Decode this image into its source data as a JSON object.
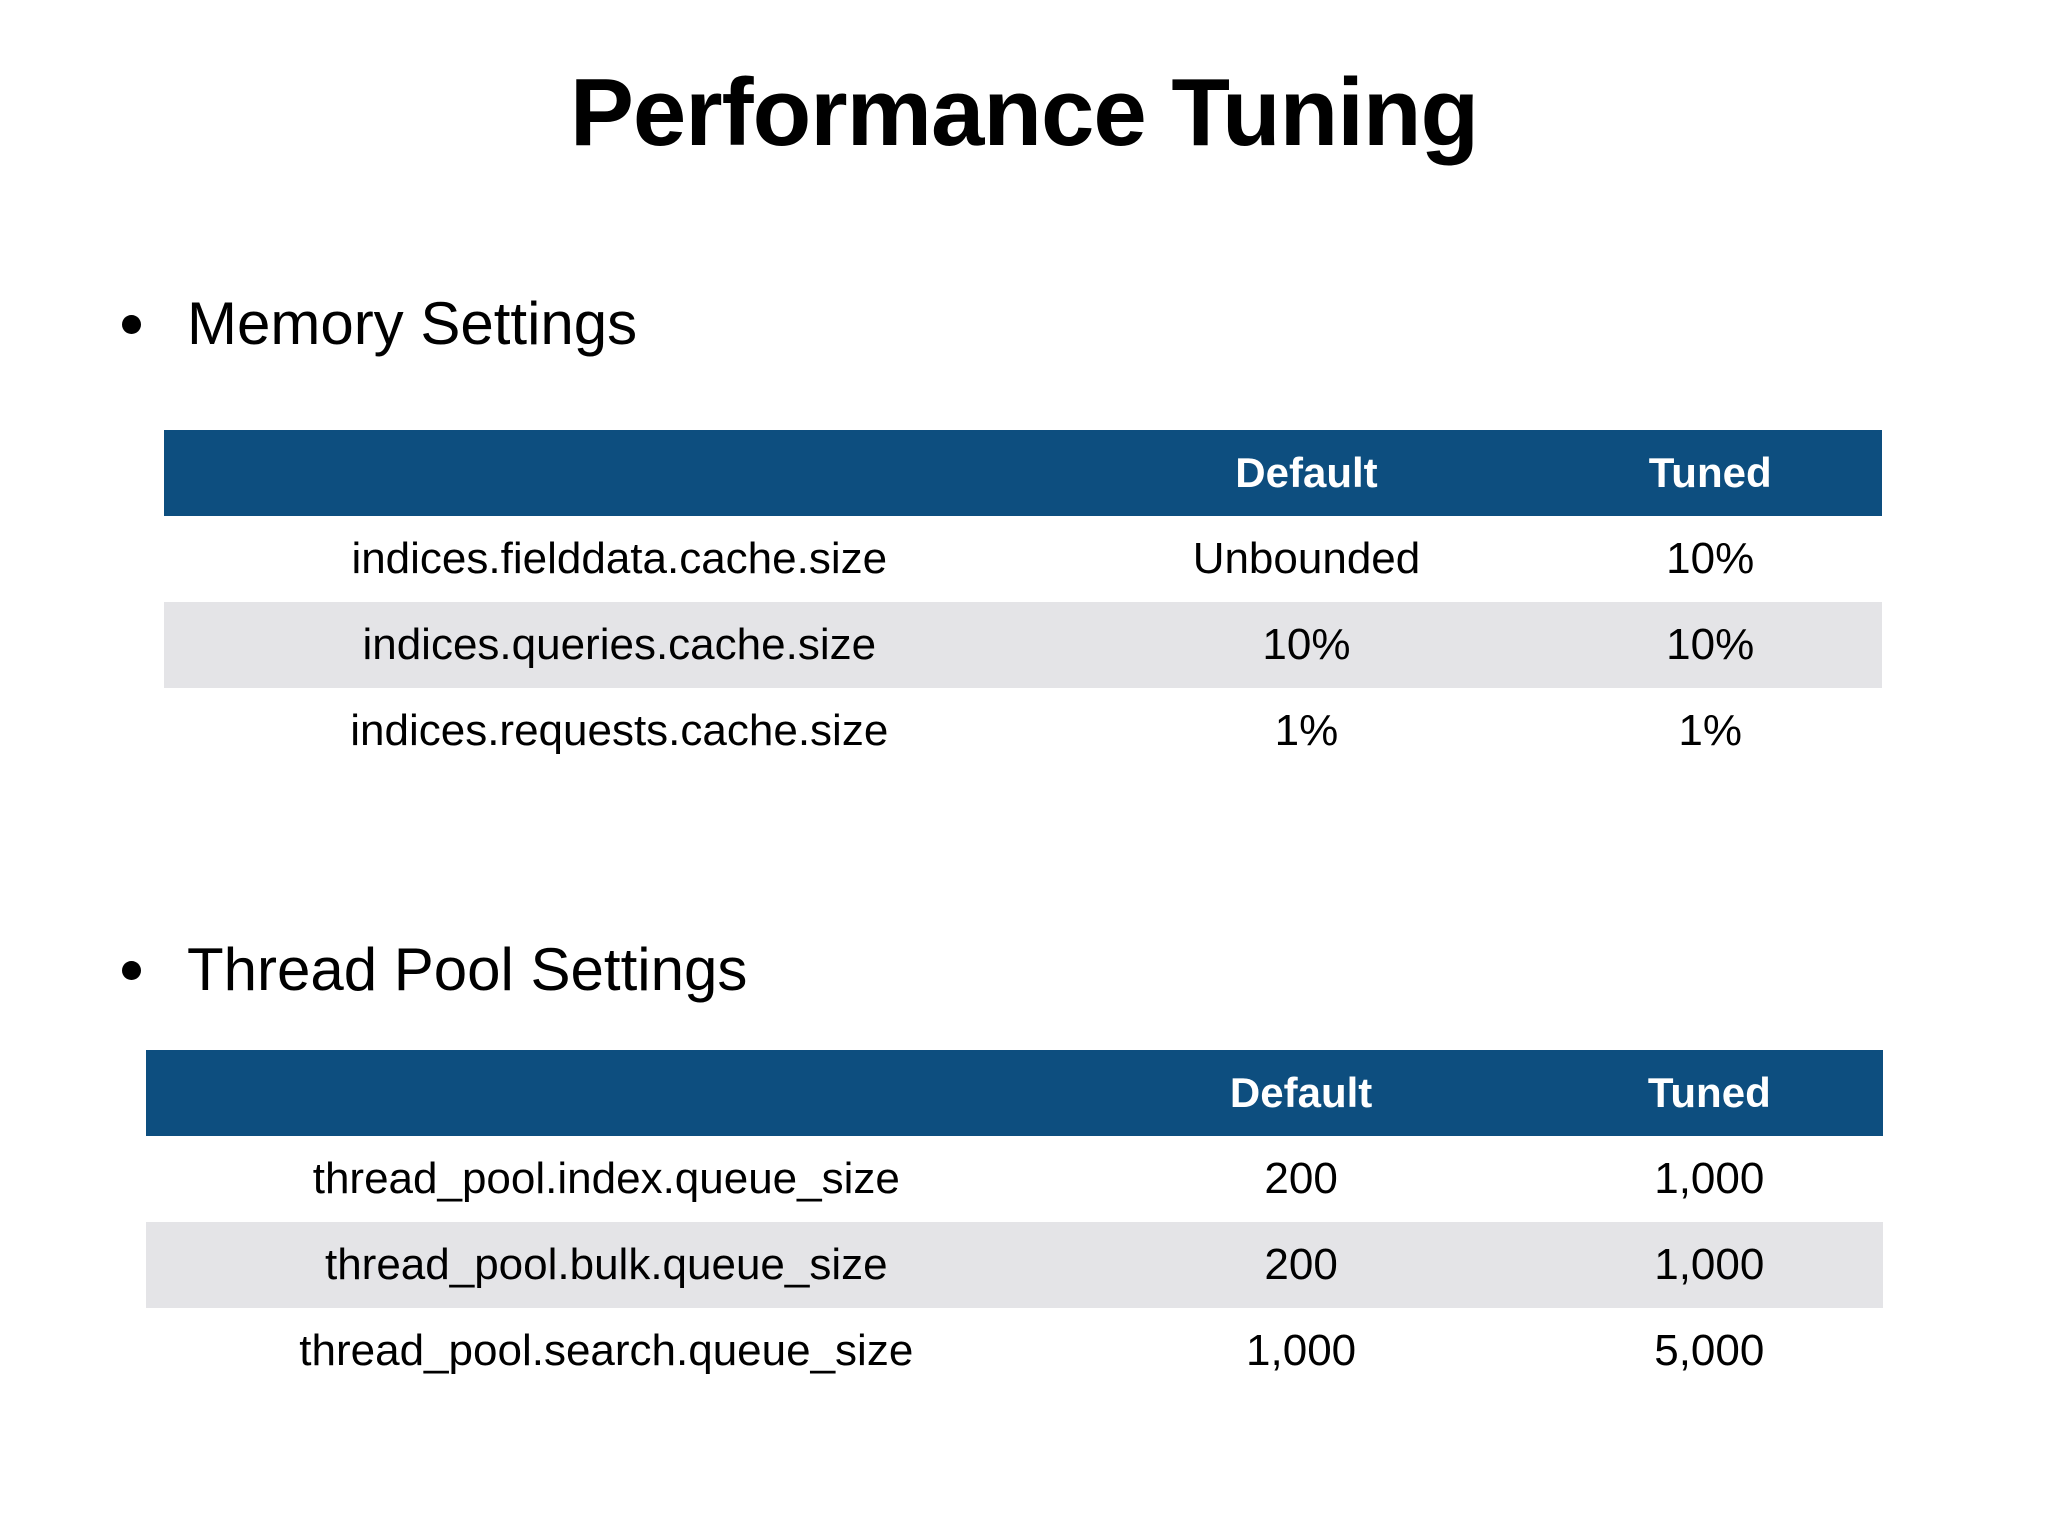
{
  "slide": {
    "title": "Performance Tuning",
    "colors": {
      "header_bg": "#0d4e7f",
      "row_alt_bg": "#e4e4e7",
      "header_text": "#ffffff",
      "body_text": "#000000",
      "slide_bg": "#ffffff"
    },
    "sections": [
      {
        "heading": "Memory Settings",
        "table": {
          "columns": [
            "",
            "Default",
            "Tuned"
          ],
          "rows": [
            [
              "indices.fielddata.cache.size",
              "Unbounded",
              "10%"
            ],
            [
              "indices.queries.cache.size",
              "10%",
              "10%"
            ],
            [
              "indices.requests.cache.size",
              "1%",
              "1%"
            ]
          ]
        }
      },
      {
        "heading": "Thread Pool Settings",
        "table": {
          "columns": [
            "",
            "Default",
            "Tuned"
          ],
          "rows": [
            [
              "thread_pool.index.queue_size",
              "200",
              "1,000"
            ],
            [
              "thread_pool.bulk.queue_size",
              "200",
              "1,000"
            ],
            [
              "thread_pool.search.queue_size",
              "1,000",
              "5,000"
            ]
          ]
        }
      }
    ]
  }
}
